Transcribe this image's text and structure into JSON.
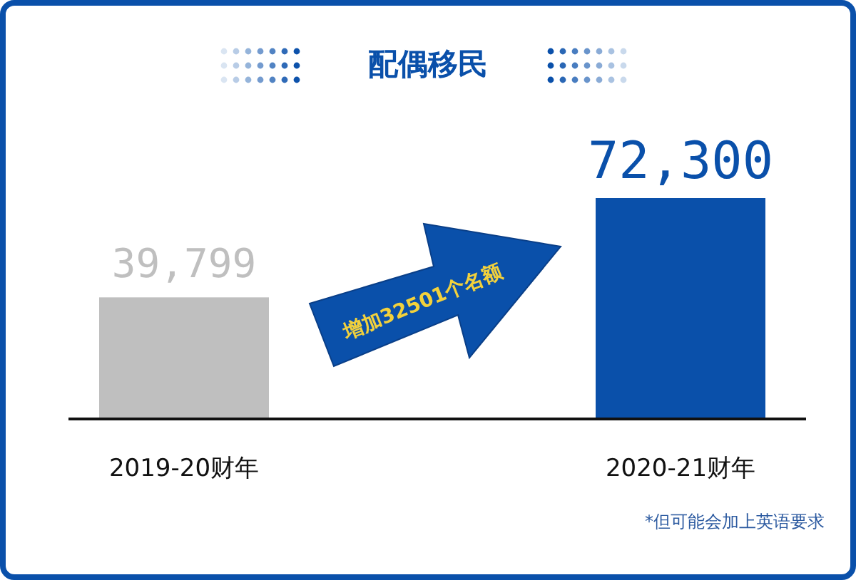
{
  "chart_data": {
    "type": "bar",
    "title": "配偶移民",
    "categories": [
      "2019-20财年",
      "2020-21财年"
    ],
    "values": [
      39799,
      72300
    ],
    "colors": [
      "#bfbfbf",
      "#0a50aa"
    ],
    "value_labels": [
      "39,799",
      "72,300"
    ],
    "annotations": [
      "增加32501个名额",
      "*但可能会加上英语要求"
    ]
  }
}
